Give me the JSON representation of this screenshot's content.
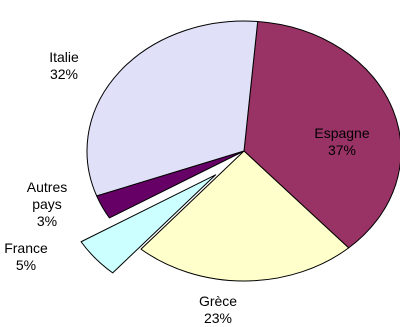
{
  "chart_data": {
    "type": "pie",
    "start_angle": 85,
    "direction": "clockwise",
    "slices": [
      {
        "label": "Espagne",
        "value": 37,
        "value_label": "37%",
        "color": "#993366"
      },
      {
        "label": "Grèce",
        "value": 23,
        "value_label": "23%",
        "color": "#FFFFCC"
      },
      {
        "label": "France",
        "value": 5,
        "value_label": "5%",
        "color": "#CCFFFF",
        "exploded": true
      },
      {
        "label": "Autres pays",
        "value": 3,
        "value_label": "3%",
        "color": "#660066"
      },
      {
        "label": "Italie",
        "value": 32,
        "value_label": "32%",
        "color": "#E0E0F8"
      }
    ]
  }
}
